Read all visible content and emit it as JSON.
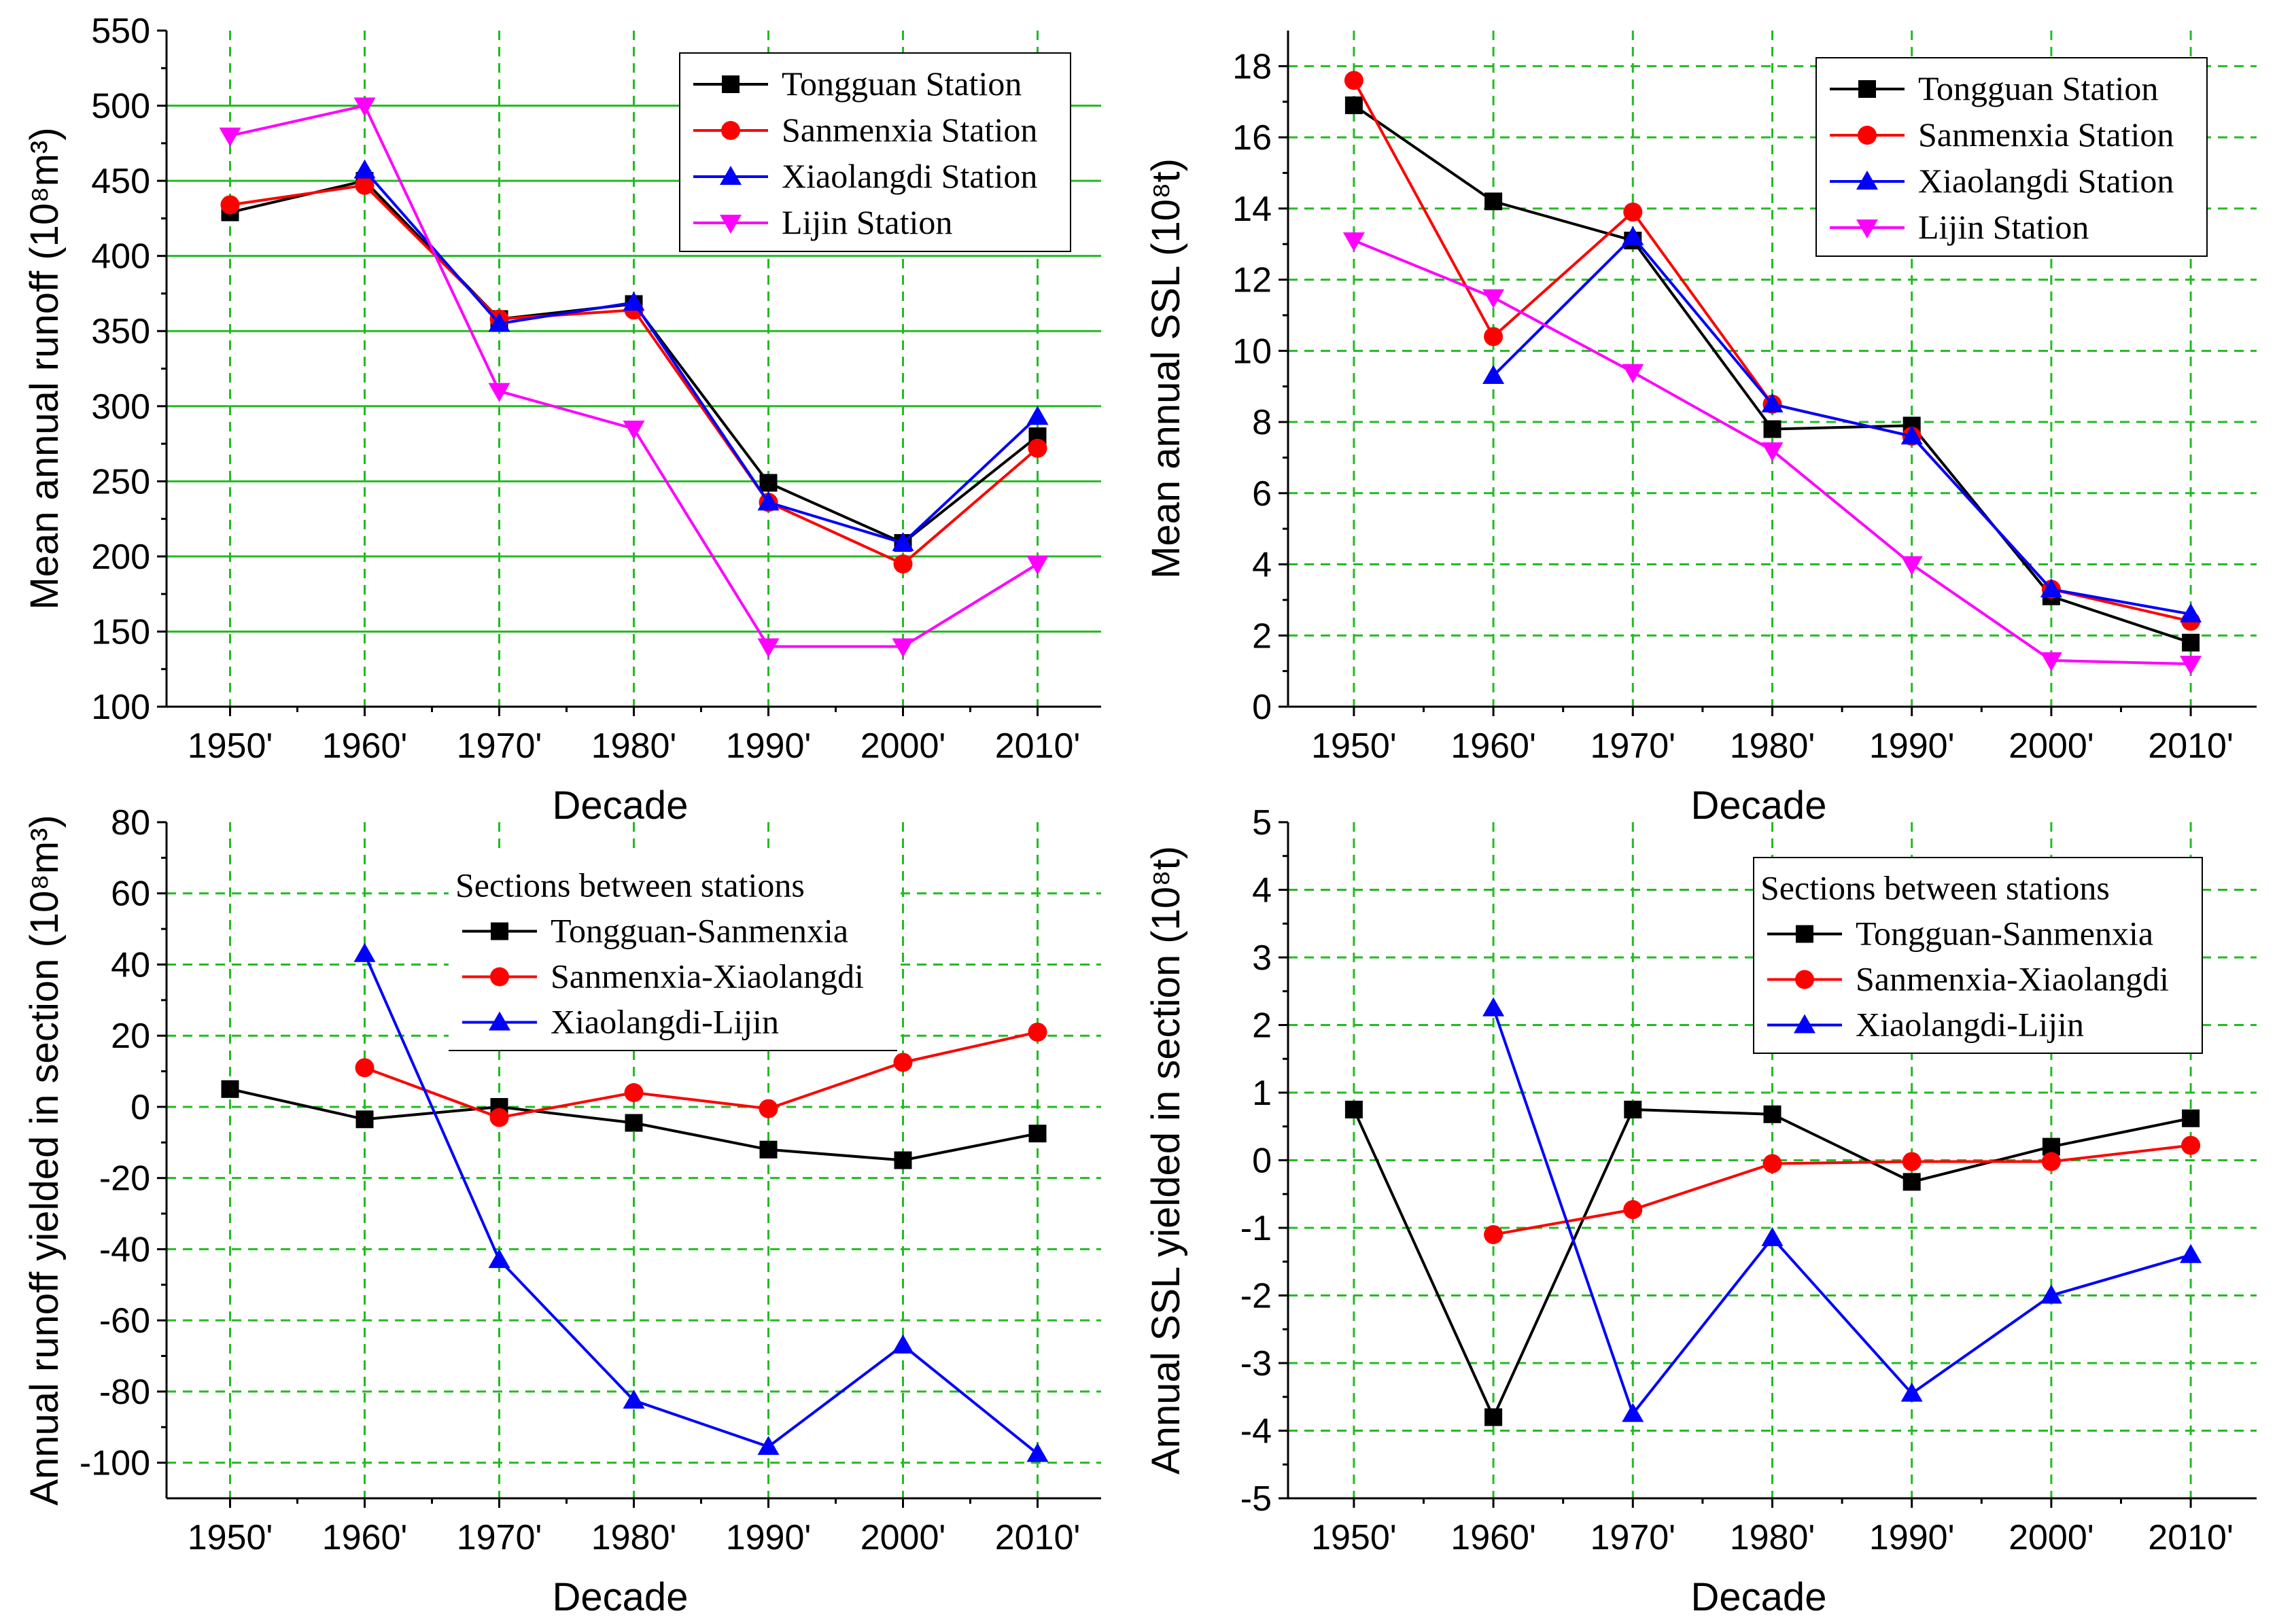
{
  "chart_data": [
    {
      "type": "line",
      "title": "",
      "xlabel": "Decade",
      "ylabel": "Mean annual runoff (10⁸m³)",
      "categories": [
        "1950'",
        "1960'",
        "1970'",
        "1980'",
        "1990'",
        "2000'",
        "2010'"
      ],
      "ylim": [
        100,
        550
      ],
      "yticks": [
        100,
        150,
        200,
        250,
        300,
        350,
        400,
        450,
        500,
        550
      ],
      "grid": {
        "x": "dashed",
        "y": "solid",
        "color": "#22bb22"
      },
      "legend": {
        "position": "top-right",
        "title": ""
      },
      "series": [
        {
          "name": "Tongguan Station",
          "color": "#000000",
          "marker": "square",
          "values": [
            429,
            450,
            358,
            368,
            249,
            209,
            280
          ]
        },
        {
          "name": "Sanmenxia Station",
          "color": "#ff0000",
          "marker": "circle",
          "values": [
            434,
            447,
            358,
            364,
            236,
            195,
            272
          ]
        },
        {
          "name": "Xiaolangdi Station",
          "color": "#0000ff",
          "marker": "triangle-up",
          "values": [
            null,
            457,
            355,
            369,
            236,
            209,
            293
          ]
        },
        {
          "name": "Lijin Station",
          "color": "#ff00ff",
          "marker": "triangle-down",
          "values": [
            480,
            500,
            310,
            285,
            140,
            140,
            195
          ]
        }
      ]
    },
    {
      "type": "line",
      "title": "",
      "xlabel": "Decade",
      "ylabel": "Mean annual SSL (10⁸t)",
      "categories": [
        "1950'",
        "1960'",
        "1970'",
        "1980'",
        "1990'",
        "2000'",
        "2010'"
      ],
      "ylim": [
        0,
        19
      ],
      "yticks": [
        0,
        2,
        4,
        6,
        8,
        10,
        12,
        14,
        16,
        18
      ],
      "grid": {
        "x": "dashed",
        "y": "dashed",
        "color": "#22bb22"
      },
      "legend": {
        "position": "top-right",
        "title": ""
      },
      "series": [
        {
          "name": "Tongguan Station",
          "color": "#000000",
          "marker": "square",
          "values": [
            16.9,
            14.2,
            13.1,
            7.8,
            7.9,
            3.1,
            1.8
          ]
        },
        {
          "name": "Sanmenxia Station",
          "color": "#ff0000",
          "marker": "circle",
          "values": [
            17.6,
            10.4,
            13.9,
            8.5,
            7.6,
            3.3,
            2.4
          ]
        },
        {
          "name": "Xiaolangdi Station",
          "color": "#0000ff",
          "marker": "triangle-up",
          "values": [
            null,
            9.3,
            13.2,
            8.5,
            7.6,
            3.3,
            2.6
          ]
        },
        {
          "name": "Lijin Station",
          "color": "#ff00ff",
          "marker": "triangle-down",
          "values": [
            13.1,
            11.5,
            9.4,
            7.2,
            4.0,
            1.3,
            1.2
          ]
        }
      ]
    },
    {
      "type": "line",
      "title": "",
      "xlabel": "Decade",
      "ylabel": "Annual runoff yielded in section (10⁸m³)",
      "categories": [
        "1950'",
        "1960'",
        "1970'",
        "1980'",
        "1990'",
        "2000'",
        "2010'"
      ],
      "ylim": [
        -110,
        80
      ],
      "yticks": [
        -100,
        -80,
        -60,
        -40,
        -20,
        0,
        20,
        40,
        60,
        80
      ],
      "grid": {
        "x": "dashed",
        "y": "dashed",
        "color": "#22bb22"
      },
      "legend": {
        "position": "top-right",
        "title": "Sections between stations"
      },
      "series": [
        {
          "name": "Tongguan-Sanmenxia",
          "color": "#000000",
          "marker": "square",
          "values": [
            5,
            -3.5,
            0,
            -4.5,
            -12,
            -15,
            -7.5
          ]
        },
        {
          "name": "Sanmenxia-Xiaolangdi",
          "color": "#ff0000",
          "marker": "circle",
          "values": [
            null,
            11,
            -3,
            4,
            -0.5,
            12.5,
            21
          ]
        },
        {
          "name": "Xiaolangdi-Lijin",
          "color": "#0000ff",
          "marker": "triangle-up",
          "values": [
            null,
            43,
            -43,
            -82.5,
            -95.5,
            -67,
            -97.5
          ]
        }
      ]
    },
    {
      "type": "line",
      "title": "",
      "xlabel": "Decade",
      "ylabel": "Annual SSL yielded in section (10⁸t)",
      "categories": [
        "1950'",
        "1960'",
        "1970'",
        "1980'",
        "1990'",
        "2000'",
        "2010'"
      ],
      "ylim": [
        -5,
        5
      ],
      "yticks": [
        -5,
        -4,
        -3,
        -2,
        -1,
        0,
        1,
        2,
        3,
        4,
        5
      ],
      "grid": {
        "x": "dashed",
        "y": "dashed",
        "color": "#22bb22"
      },
      "legend": {
        "position": "top-right",
        "title": "Sections between stations"
      },
      "series": [
        {
          "name": "Tongguan-Sanmenxia",
          "color": "#000000",
          "marker": "square",
          "values": [
            0.75,
            -3.8,
            0.75,
            0.68,
            -0.32,
            0.2,
            0.62
          ]
        },
        {
          "name": "Sanmenxia-Xiaolangdi",
          "color": "#ff0000",
          "marker": "circle",
          "values": [
            null,
            -1.1,
            -0.73,
            -0.05,
            -0.02,
            -0.02,
            0.22
          ]
        },
        {
          "name": "Xiaolangdi-Lijin",
          "color": "#0000ff",
          "marker": "triangle-up",
          "values": [
            null,
            2.25,
            -3.75,
            -1.15,
            -3.45,
            -2.0,
            -1.4
          ]
        }
      ]
    }
  ]
}
